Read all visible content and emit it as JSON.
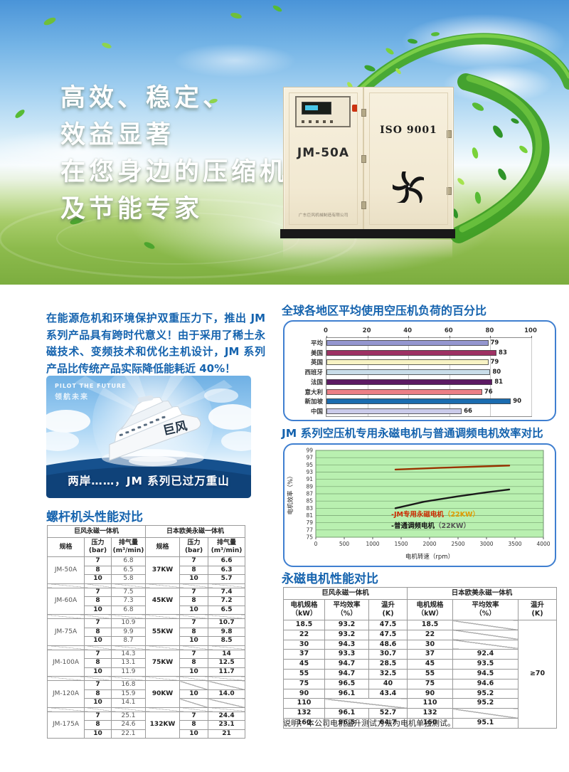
{
  "banner": {
    "headline_lines": [
      "高效、稳定、",
      "效益显著",
      "在您身边的压缩机",
      "及节能专家"
    ],
    "machine": {
      "model": "JM-50A",
      "cert": "ISO 9001",
      "company": "广东巨风机械制造有限公司"
    }
  },
  "intro_paragraph": "在能源危机和环境保护双重压力下，推出 JM 系列产品具有跨时代意义！由于采用了稀土永磁技术、变频技术和优化主机设计，JM 系列产品比传统产品实际降低能耗近 40%！",
  "ship_card": {
    "tagline_en": "PILOT THE FUTURE",
    "tagline_cn": "领航未来",
    "ship_label": "巨风",
    "caption": "两岸……，JM 系列已过万重山"
  },
  "headings": {
    "screw_table": "螺杆机头性能对比",
    "bar_chart": "全球各地区平均使用空压机负荷的百分比",
    "line_chart": "JM 系列空压机专用永磁电机与普通调频电机效率对比",
    "motor_table": "永磁电机性能对比"
  },
  "motor_table_note": "说明：本公司电机温升测试方法为电机单独测试。",
  "accent_colors": {
    "heading_blue": "#1563ae",
    "panel_border_blue": "#3f7fd0",
    "line_plot_background": "#b9f0b0"
  },
  "chart_data": [
    {
      "type": "bar",
      "orientation": "horizontal",
      "title": "全球各地区平均使用空压机负荷的百分比",
      "categories": [
        "平均",
        "美国",
        "英国",
        "西班牙",
        "法国",
        "意大利",
        "新加坡",
        "中国"
      ],
      "values": [
        79,
        83,
        79,
        80,
        81,
        76,
        90,
        66
      ],
      "bar_colors": [
        "#9496cf",
        "#9e3163",
        "#f8f3c4",
        "#c9dde9",
        "#5d1a64",
        "#ec7f86",
        "#1b6cb0",
        "#cbcbea"
      ],
      "xlim": [
        0,
        100
      ],
      "xticks": [
        0,
        20,
        40,
        60,
        80,
        100
      ],
      "value_labels": true,
      "grid": true,
      "legend": "none"
    },
    {
      "type": "line",
      "title": "JM 系列空压机专用永磁电机与普通调频电机效率对比",
      "xlabel": "电机转速（rpm）",
      "ylabel": "电机效率（%）",
      "xlim": [
        0,
        4000
      ],
      "ylim": [
        75,
        99
      ],
      "xticks": [
        0,
        500,
        1000,
        1500,
        2000,
        2500,
        3000,
        3500,
        4000
      ],
      "yticks": [
        75,
        77,
        79,
        81,
        83,
        85,
        87,
        89,
        91,
        93,
        95,
        97,
        99
      ],
      "grid": true,
      "legend_position": "inside lower-center",
      "series": [
        {
          "name": "JM专用永磁电机（22KW）",
          "color": "#993300",
          "points": [
            [
              1400,
              93.7
            ],
            [
              2200,
              94.2
            ],
            [
              2800,
              94.5
            ],
            [
              3400,
              94.8
            ]
          ]
        },
        {
          "name": "普通调频电机（22KW）",
          "color": "#1a1a1a",
          "points": [
            [
              1400,
              83.0
            ],
            [
              1900,
              84.8
            ],
            [
              2500,
              86.3
            ],
            [
              3000,
              87.4
            ],
            [
              3400,
              88.2
            ]
          ]
        }
      ],
      "legend": [
        {
          "label": "-JM专用永磁电机",
          "suffix": "（22KW）",
          "color": "#cc2a00",
          "suffix_color": "#e09a00"
        },
        {
          "label": "-普通调频电机",
          "suffix": "（22KW）",
          "color": "#111111",
          "suffix_color": "#555555"
        }
      ]
    },
    {
      "type": "table",
      "title": "螺杆机头性能对比",
      "group_headers": [
        "巨风永磁一体机",
        "日本欧美永磁一体机"
      ],
      "col_headers": [
        "规格",
        "压力\n(bar)",
        "排气量\n(m³/min)",
        "规格",
        "压力\n(bar)",
        "排气量\n(m³/min)"
      ],
      "blocks": [
        {
          "model": "JM-50A",
          "kw": "37KW",
          "left": [
            [
              "7",
              "6.8"
            ],
            [
              "8",
              "6.5"
            ],
            [
              "10",
              "5.8"
            ]
          ],
          "right": [
            [
              "7",
              "6.6"
            ],
            [
              "8",
              "6.3"
            ],
            [
              "10",
              "5.7"
            ]
          ]
        },
        {
          "model": "JM-60A",
          "kw": "45KW",
          "left": [
            [
              "7",
              "7.5"
            ],
            [
              "8",
              "7.3"
            ],
            [
              "10",
              "6.8"
            ]
          ],
          "right": [
            [
              "7",
              "7.4"
            ],
            [
              "8",
              "7.2"
            ],
            [
              "10",
              "6.5"
            ]
          ]
        },
        {
          "model": "JM-75A",
          "kw": "55KW",
          "left": [
            [
              "7",
              "10.9"
            ],
            [
              "8",
              "9.9"
            ],
            [
              "10",
              "8.7"
            ]
          ],
          "right": [
            [
              "7",
              "10.7"
            ],
            [
              "8",
              "9.8"
            ],
            [
              "10",
              "8.5"
            ]
          ]
        },
        {
          "model": "JM-100A",
          "kw": "75KW",
          "left": [
            [
              "7",
              "14.3"
            ],
            [
              "8",
              "13.1"
            ],
            [
              "10",
              "11.9"
            ]
          ],
          "right": [
            [
              "7",
              "14"
            ],
            [
              "8",
              "12.5"
            ],
            [
              "10",
              "11.7"
            ]
          ]
        },
        {
          "model": "JM-120A",
          "kw": "90KW",
          "left": [
            [
              "7",
              "16.8"
            ],
            [
              "8",
              "15.9"
            ],
            [
              "10",
              "14.1"
            ]
          ],
          "right": [
            [
              "slash",
              "slash"
            ],
            [
              "10",
              "14.0"
            ],
            [
              "slash",
              "slash"
            ]
          ]
        },
        {
          "model": "JM-175A",
          "kw": "132KW",
          "left": [
            [
              "7",
              "25.1"
            ],
            [
              "8",
              "24.6"
            ],
            [
              "10",
              "22.1"
            ]
          ],
          "right": [
            [
              "7",
              "24.4"
            ],
            [
              "8",
              "23.1"
            ],
            [
              "10",
              "21"
            ]
          ]
        }
      ]
    },
    {
      "type": "table",
      "title": "永磁电机性能对比",
      "group_headers": [
        "巨风永磁一体机",
        "日本欧美永磁一体机"
      ],
      "col_headers": [
        "电机规格\n（kW）",
        "平均效率\n（%）",
        "温升\n(K)",
        "电机规格\n（kW）",
        "平均效率\n（%）",
        "温升\n(K)"
      ],
      "rows": [
        [
          "18.5",
          "93.2",
          "47.5",
          "18.5",
          "slash"
        ],
        [
          "22",
          "93.2",
          "47.5",
          "22",
          "slash"
        ],
        [
          "30",
          "94.3",
          "48.6",
          "30",
          "slash"
        ],
        [
          "37",
          "93.3",
          "30.7",
          "37",
          "92.4"
        ],
        [
          "45",
          "94.7",
          "28.5",
          "45",
          "93.5"
        ],
        [
          "55",
          "94.7",
          "32.5",
          "55",
          "94.5"
        ],
        [
          "75",
          "96.5",
          "40",
          "75",
          "94.6"
        ],
        [
          "90",
          "96.1",
          "43.4",
          "90",
          "95.2"
        ],
        [
          "110",
          "slash",
          "slash",
          "110",
          "95.2"
        ],
        [
          "132",
          "96.1",
          "52.7",
          "132",
          "slash"
        ],
        [
          "160",
          "96.5",
          "64.7",
          "160",
          "95.1"
        ]
      ],
      "right_temp_rise_merged": "≥70",
      "note": "说明：本公司电机温升测试方法为电机单独测试。"
    }
  ]
}
